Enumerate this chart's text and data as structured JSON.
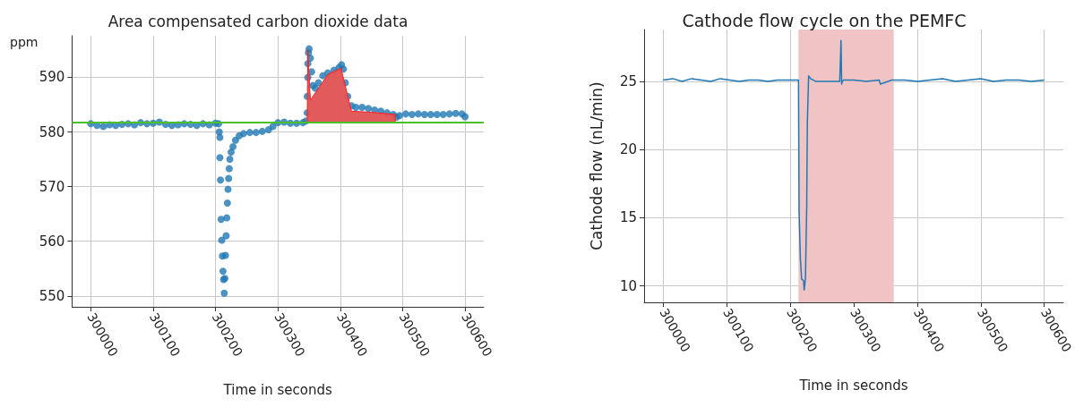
{
  "chart_data": [
    {
      "type": "scatter",
      "title": "Area compensated carbon dioxide data",
      "xlabel": "Time in seconds",
      "ylabel": "ppm",
      "xlim": [
        299970,
        300630
      ],
      "ylim": [
        548,
        597.6
      ],
      "xticks": [
        300000,
        300100,
        300200,
        300300,
        300400,
        300500,
        300600
      ],
      "yticks": [
        550,
        560,
        570,
        580,
        590
      ],
      "grid": true,
      "ref_lines": [
        {
          "axis": "y",
          "value": 581.8,
          "color": "#4cc02a"
        }
      ],
      "series": [
        {
          "marker": "circle",
          "color": "#1f77b4",
          "x": [
            300000,
            300010,
            300020,
            300030,
            300040,
            300050,
            300060,
            300070,
            300080,
            300090,
            300100,
            300110,
            300120,
            300130,
            300140,
            300150,
            300160,
            300170,
            300180,
            300190,
            300200,
            300205,
            300206,
            300207,
            300207,
            300208,
            300209,
            300210,
            300211,
            300212,
            300213,
            300214,
            300215,
            300216,
            300217,
            300218,
            300219,
            300220,
            300221,
            300222,
            300223,
            300225,
            300228,
            300232,
            300238,
            300245,
            300255,
            300265,
            300275,
            300285,
            300292,
            300300,
            300310,
            300320,
            300330,
            300340,
            300345,
            300347,
            300347,
            300348,
            300348,
            300349,
            300350,
            300352,
            300354,
            300356,
            300360,
            300365,
            300372,
            300380,
            300390,
            300398,
            300402,
            300405,
            300408,
            300412,
            300418,
            300425,
            300435,
            300445,
            300455,
            300465,
            300475,
            300485,
            300490,
            300495,
            300505,
            300515,
            300525,
            300535,
            300545,
            300555,
            300565,
            300575,
            300585,
            300595,
            300600
          ],
          "values": [
            581.5,
            581.2,
            581.0,
            581.3,
            581.2,
            581.4,
            581.5,
            581.3,
            581.7,
            581.5,
            581.6,
            581.8,
            581.4,
            581.2,
            581.3,
            581.5,
            581.4,
            581.2,
            581.5,
            581.3,
            581.6,
            581.5,
            580.0,
            579.0,
            575.3,
            571.2,
            564.0,
            560.2,
            557.3,
            554.5,
            553.0,
            550.5,
            553.2,
            557.4,
            561.0,
            564.3,
            567.0,
            569.5,
            571.5,
            573.3,
            575.0,
            576.3,
            577.3,
            578.5,
            579.3,
            579.7,
            579.9,
            579.9,
            580.1,
            580.4,
            581.0,
            581.7,
            581.8,
            581.6,
            581.6,
            581.7,
            582.0,
            583.5,
            586.5,
            590.0,
            592.5,
            594.5,
            595.2,
            593.5,
            591.0,
            588.5,
            588.0,
            589.0,
            590.3,
            590.8,
            591.3,
            591.8,
            592.3,
            591.5,
            589.0,
            586.5,
            584.8,
            584.5,
            584.5,
            584.3,
            584.0,
            583.8,
            583.5,
            583.2,
            582.7,
            583.0,
            583.3,
            583.2,
            583.3,
            583.2,
            583.2,
            583.2,
            583.2,
            583.3,
            583.4,
            583.3,
            582.8
          ]
        },
        {
          "type": "area",
          "color": "#e05252",
          "x": [
            300347,
            300348,
            300352,
            300380,
            300401,
            300418,
            300450,
            300488,
            300488
          ],
          "values": [
            581.8,
            595,
            585.8,
            590.5,
            591.7,
            583.8,
            583.6,
            583.2,
            581.8
          ]
        }
      ]
    },
    {
      "type": "line",
      "title": "Cathode flow cycle on the PEMFC",
      "xlabel": "Time in seconds",
      "ylabel": "Cathode flow (nL/min)",
      "xlim": [
        299970,
        300630
      ],
      "ylim": [
        8.8,
        28.8
      ],
      "xticks": [
        300000,
        300100,
        300200,
        300300,
        300400,
        300500,
        300600
      ],
      "yticks": [
        10,
        15,
        20,
        25
      ],
      "grid": true,
      "marker": "none",
      "bands": [
        {
          "axis": "x",
          "from": 300213,
          "to": 300363,
          "color": "#f0c4c4"
        }
      ],
      "series": [
        {
          "color": "#1f77b4",
          "x": [
            300000,
            300015,
            300030,
            300045,
            300060,
            300075,
            300090,
            300105,
            300120,
            300135,
            300150,
            300165,
            300180,
            300195,
            300210,
            300213,
            300214,
            300216,
            300218,
            300221,
            300222,
            300224,
            300226,
            300227,
            300229,
            300232,
            300240,
            300260,
            300278,
            300280,
            300281,
            300282,
            300284,
            300300,
            300320,
            300340,
            300342,
            300360,
            300380,
            300400,
            300420,
            300440,
            300460,
            300480,
            300500,
            300520,
            300540,
            300560,
            300580,
            300600
          ],
          "values": [
            25.1,
            25.2,
            25.0,
            25.2,
            25.1,
            25.0,
            25.2,
            25.1,
            25.0,
            25.1,
            25.1,
            25.0,
            25.1,
            25.1,
            25.1,
            25.1,
            15.5,
            12.0,
            10.5,
            10.4,
            9.7,
            10.5,
            15.8,
            22.0,
            25.4,
            25.2,
            25.0,
            25.0,
            25.0,
            28.0,
            24.8,
            25.0,
            25.1,
            25.1,
            25.0,
            25.1,
            24.8,
            25.1,
            25.1,
            25.0,
            25.1,
            25.2,
            25.0,
            25.1,
            25.2,
            25.0,
            25.1,
            25.1,
            25.0,
            25.1
          ]
        }
      ]
    }
  ]
}
